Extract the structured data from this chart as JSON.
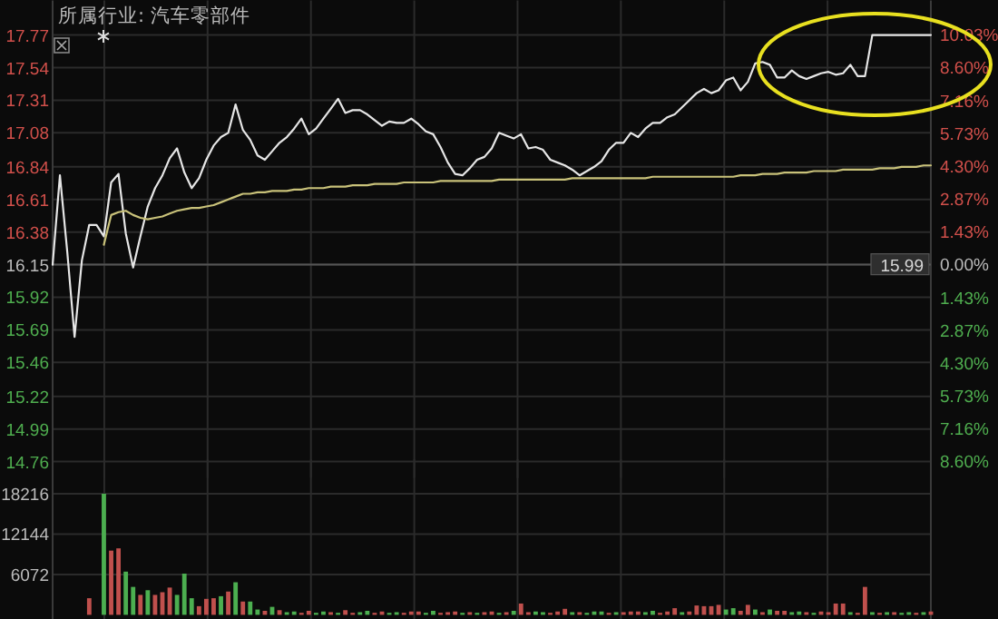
{
  "chart_data": [
    {
      "type": "line",
      "title": "所属行业: 汽车零部件",
      "categories": [
        null,
        null,
        null,
        null,
        null,
        null,
        null,
        null,
        null,
        null,
        null,
        null,
        null,
        null,
        null,
        null,
        null,
        null,
        null,
        null,
        null,
        null,
        null,
        null,
        null,
        null,
        null,
        null,
        null,
        null,
        null,
        null,
        null,
        null,
        null,
        null,
        null,
        null,
        null,
        null,
        null,
        null,
        null,
        null,
        null,
        null,
        null,
        null,
        null,
        null,
        null,
        null,
        null,
        null,
        null,
        null,
        null,
        null,
        null,
        null,
        null,
        null,
        null,
        null,
        null,
        null,
        null,
        null,
        null,
        null,
        null,
        null,
        null,
        null,
        null,
        null,
        null,
        null,
        null,
        null,
        null,
        null,
        null,
        null,
        null,
        null,
        null,
        null,
        null,
        null,
        null,
        null,
        null,
        null,
        null,
        null,
        null,
        null,
        null,
        null,
        null,
        null,
        null,
        null,
        null,
        null,
        null,
        null,
        null,
        null,
        null,
        null,
        null,
        null,
        null,
        null,
        null,
        null,
        null,
        null,
        null
      ],
      "ylim": [
        14.76,
        17.77
      ],
      "yticks": [
        14.76,
        14.99,
        15.22,
        15.46,
        15.69,
        15.92,
        16.15,
        16.38,
        16.61,
        16.84,
        17.08,
        17.31,
        17.54,
        17.77
      ],
      "y2lim": [
        -8.6,
        10.03
      ],
      "y2ticks": [
        {
          "value": -8.6,
          "label": "8.60%"
        },
        {
          "value": -7.16,
          "label": "7.16%"
        },
        {
          "value": -5.73,
          "label": "5.73%"
        },
        {
          "value": -4.3,
          "label": "4.30%"
        },
        {
          "value": -2.87,
          "label": "2.87%"
        },
        {
          "value": -1.43,
          "label": "1.43%"
        },
        {
          "value": 0,
          "label": "0.00%"
        },
        {
          "value": 1.43,
          "label": "1.43%"
        },
        {
          "value": 2.87,
          "label": "2.87%"
        },
        {
          "value": 4.3,
          "label": "4.30%"
        },
        {
          "value": 5.73,
          "label": "5.73%"
        },
        {
          "value": 7.16,
          "label": "7.16%"
        },
        {
          "value": 8.6,
          "label": "8.60%"
        },
        {
          "value": 10.03,
          "label": "10.03%"
        }
      ],
      "tick_labels": "y",
      "grid": true,
      "ref_lines": [
        {
          "axis": "y",
          "value": 16.15,
          "color": "#555555"
        }
      ],
      "annotations": [
        "15.99"
      ],
      "series": [
        {
          "color": "#e6e6e6",
          "values": [
            16.15,
            16.78,
            16.24,
            15.64,
            16.18,
            16.43,
            16.43,
            16.35,
            16.73,
            16.79,
            16.37,
            16.13,
            16.35,
            16.56,
            16.69,
            16.78,
            16.9,
            16.97,
            16.8,
            16.69,
            16.76,
            16.89,
            16.99,
            17.05,
            17.08,
            17.28,
            17.1,
            17.03,
            16.92,
            16.89,
            16.95,
            17.01,
            17.05,
            17.11,
            17.18,
            17.07,
            17.11,
            17.18,
            17.25,
            17.32,
            17.22,
            17.24,
            17.24,
            17.21,
            17.17,
            17.13,
            17.16,
            17.15,
            17.15,
            17.18,
            17.14,
            17.09,
            17.07,
            16.98,
            16.87,
            16.79,
            16.78,
            16.83,
            16.89,
            16.91,
            16.97,
            17.08,
            17.06,
            17.04,
            17.07,
            16.97,
            16.98,
            16.96,
            16.89,
            16.87,
            16.85,
            16.82,
            16.78,
            16.81,
            16.84,
            16.88,
            16.96,
            17.01,
            17.01,
            17.08,
            17.05,
            17.11,
            17.15,
            17.15,
            17.19,
            17.21,
            17.26,
            17.31,
            17.36,
            17.39,
            17.36,
            17.38,
            17.45,
            17.47,
            17.38,
            17.44,
            17.57,
            17.58,
            17.56,
            17.47,
            17.47,
            17.52,
            17.48,
            17.46,
            17.48,
            17.5,
            17.51,
            17.49,
            17.5,
            17.56,
            17.48,
            17.48,
            17.77,
            17.77,
            17.77,
            17.77,
            17.77,
            17.77,
            17.77,
            17.77,
            17.77
          ]
        },
        {
          "color": "#c9c27a",
          "values": [
            null,
            null,
            null,
            null,
            null,
            null,
            null,
            16.29,
            16.5,
            16.52,
            16.53,
            16.5,
            16.48,
            16.47,
            16.48,
            16.49,
            16.51,
            16.53,
            16.54,
            16.55,
            16.55,
            16.56,
            16.57,
            16.59,
            16.61,
            16.63,
            16.65,
            16.65,
            16.66,
            16.66,
            16.67,
            16.67,
            16.67,
            16.68,
            16.68,
            16.69,
            16.69,
            16.69,
            16.7,
            16.7,
            16.7,
            16.71,
            16.71,
            16.71,
            16.72,
            16.72,
            16.72,
            16.72,
            16.73,
            16.73,
            16.73,
            16.73,
            16.73,
            16.74,
            16.74,
            16.74,
            16.74,
            16.74,
            16.74,
            16.74,
            16.74,
            16.75,
            16.75,
            16.75,
            16.75,
            16.75,
            16.75,
            16.75,
            16.75,
            16.75,
            16.75,
            16.76,
            16.76,
            16.76,
            16.76,
            16.76,
            16.76,
            16.76,
            16.76,
            16.76,
            16.76,
            16.76,
            16.77,
            16.77,
            16.77,
            16.77,
            16.77,
            16.77,
            16.77,
            16.77,
            16.77,
            16.77,
            16.77,
            16.77,
            16.78,
            16.78,
            16.78,
            16.79,
            16.79,
            16.79,
            16.8,
            16.8,
            16.8,
            16.8,
            16.81,
            16.81,
            16.81,
            16.81,
            16.82,
            16.82,
            16.82,
            16.82,
            16.82,
            16.83,
            16.83,
            16.83,
            16.84,
            16.84,
            16.84,
            16.85,
            16.85
          ]
        }
      ]
    },
    {
      "type": "bar",
      "categories": [
        null,
        null,
        null,
        null,
        null,
        null,
        null,
        null,
        null,
        null,
        null,
        null,
        null,
        null,
        null,
        null,
        null,
        null,
        null,
        null,
        null,
        null,
        null,
        null,
        null,
        null,
        null,
        null,
        null,
        null,
        null,
        null,
        null,
        null,
        null,
        null,
        null,
        null,
        null,
        null,
        null,
        null,
        null,
        null,
        null,
        null,
        null,
        null,
        null,
        null,
        null,
        null,
        null,
        null,
        null,
        null,
        null,
        null,
        null,
        null,
        null,
        null,
        null,
        null,
        null,
        null,
        null,
        null,
        null,
        null,
        null,
        null,
        null,
        null,
        null,
        null,
        null,
        null,
        null,
        null,
        null,
        null,
        null,
        null,
        null,
        null,
        null,
        null,
        null,
        null,
        null,
        null,
        null,
        null,
        null,
        null,
        null,
        null,
        null,
        null,
        null,
        null,
        null,
        null,
        null,
        null,
        null,
        null,
        null,
        null,
        null,
        null,
        null,
        null,
        null,
        null,
        null,
        null,
        null,
        null,
        null
      ],
      "ylim": [
        0,
        18216
      ],
      "yticks": [
        6072,
        12144,
        18216
      ],
      "tick_labels": "y",
      "grid": true,
      "values": [
        0,
        0,
        0,
        0,
        0,
        2500,
        0,
        18216,
        9660,
        10000,
        6500,
        4200,
        3000,
        3700,
        3000,
        3400,
        4100,
        3000,
        6200,
        2500,
        1300,
        2400,
        2500,
        2800,
        3500,
        4900,
        2000,
        2000,
        800,
        600,
        1200,
        700,
        400,
        500,
        300,
        600,
        300,
        500,
        400,
        300,
        700,
        300,
        400,
        600,
        300,
        500,
        300,
        400,
        300,
        500,
        500,
        300,
        600,
        300,
        400,
        500,
        300,
        400,
        300,
        400,
        500,
        300,
        400,
        600,
        1700,
        400,
        500,
        400,
        300,
        500,
        900,
        400,
        400,
        300,
        500,
        500,
        300,
        400,
        400,
        500,
        500,
        400,
        600,
        300,
        500,
        1000,
        400,
        500,
        1400,
        1300,
        1300,
        1500,
        800,
        1000,
        600,
        1500,
        800,
        400,
        800,
        600,
        600,
        400,
        500,
        400,
        300,
        500,
        400,
        1700,
        1700,
        400,
        300,
        4200,
        400,
        300,
        400,
        400,
        300,
        400,
        300,
        400,
        500
      ],
      "colors": [
        "#c0504d",
        "#c0504d",
        "#c0504d",
        "#c0504d",
        "#c0504d",
        "#c0504d",
        "#c0504d",
        "#4caf50",
        "#c0504d",
        "#c0504d",
        "#4caf50",
        "#4caf50",
        "#c0504d",
        "#4caf50",
        "#c0504d",
        "#c0504d",
        "#c0504d",
        "#4caf50",
        "#4caf50",
        "#4caf50",
        "#c0504d",
        "#c0504d",
        "#c0504d",
        "#4caf50",
        "#c0504d",
        "#4caf50",
        "#c0504d",
        "#4caf50",
        "#4caf50",
        "#c0504d",
        "#4caf50",
        "#c0504d",
        "#4caf50",
        "#4caf50",
        "#c0504d",
        "#c0504d",
        "#4caf50",
        "#4caf50",
        "#c0504d",
        "#4caf50",
        "#c0504d",
        "#c0504d",
        "#4caf50",
        "#4caf50",
        "#c0504d",
        "#c0504d",
        "#4caf50",
        "#4caf50",
        "#c0504d",
        "#c0504d",
        "#c0504d",
        "#4caf50",
        "#4caf50",
        "#c0504d",
        "#c0504d",
        "#c0504d",
        "#4caf50",
        "#c0504d",
        "#4caf50",
        "#c0504d",
        "#c0504d",
        "#4caf50",
        "#c0504d",
        "#4caf50",
        "#c0504d",
        "#c0504d",
        "#4caf50",
        "#4caf50",
        "#c0504d",
        "#c0504d",
        "#c0504d",
        "#4caf50",
        "#c0504d",
        "#4caf50",
        "#4caf50",
        "#4caf50",
        "#c0504d",
        "#4caf50",
        "#c0504d",
        "#c0504d",
        "#c0504d",
        "#4caf50",
        "#4caf50",
        "#c0504d",
        "#c0504d",
        "#c0504d",
        "#4caf50",
        "#c0504d",
        "#c0504d",
        "#c0504d",
        "#c0504d",
        "#c0504d",
        "#4caf50",
        "#4caf50",
        "#c0504d",
        "#c0504d",
        "#4caf50",
        "#c0504d",
        "#4caf50",
        "#c0504d",
        "#c0504d",
        "#4caf50",
        "#4caf50",
        "#c0504d",
        "#4caf50",
        "#c0504d",
        "#c0504d",
        "#c0504d",
        "#c0504d",
        "#4caf50",
        "#c0504d",
        "#c0504d",
        "#4caf50",
        "#c0504d",
        "#4caf50",
        "#c0504d",
        "#4caf50",
        "#4caf50",
        "#c0504d",
        "#4caf50",
        "#c0504d"
      ]
    }
  ]
}
